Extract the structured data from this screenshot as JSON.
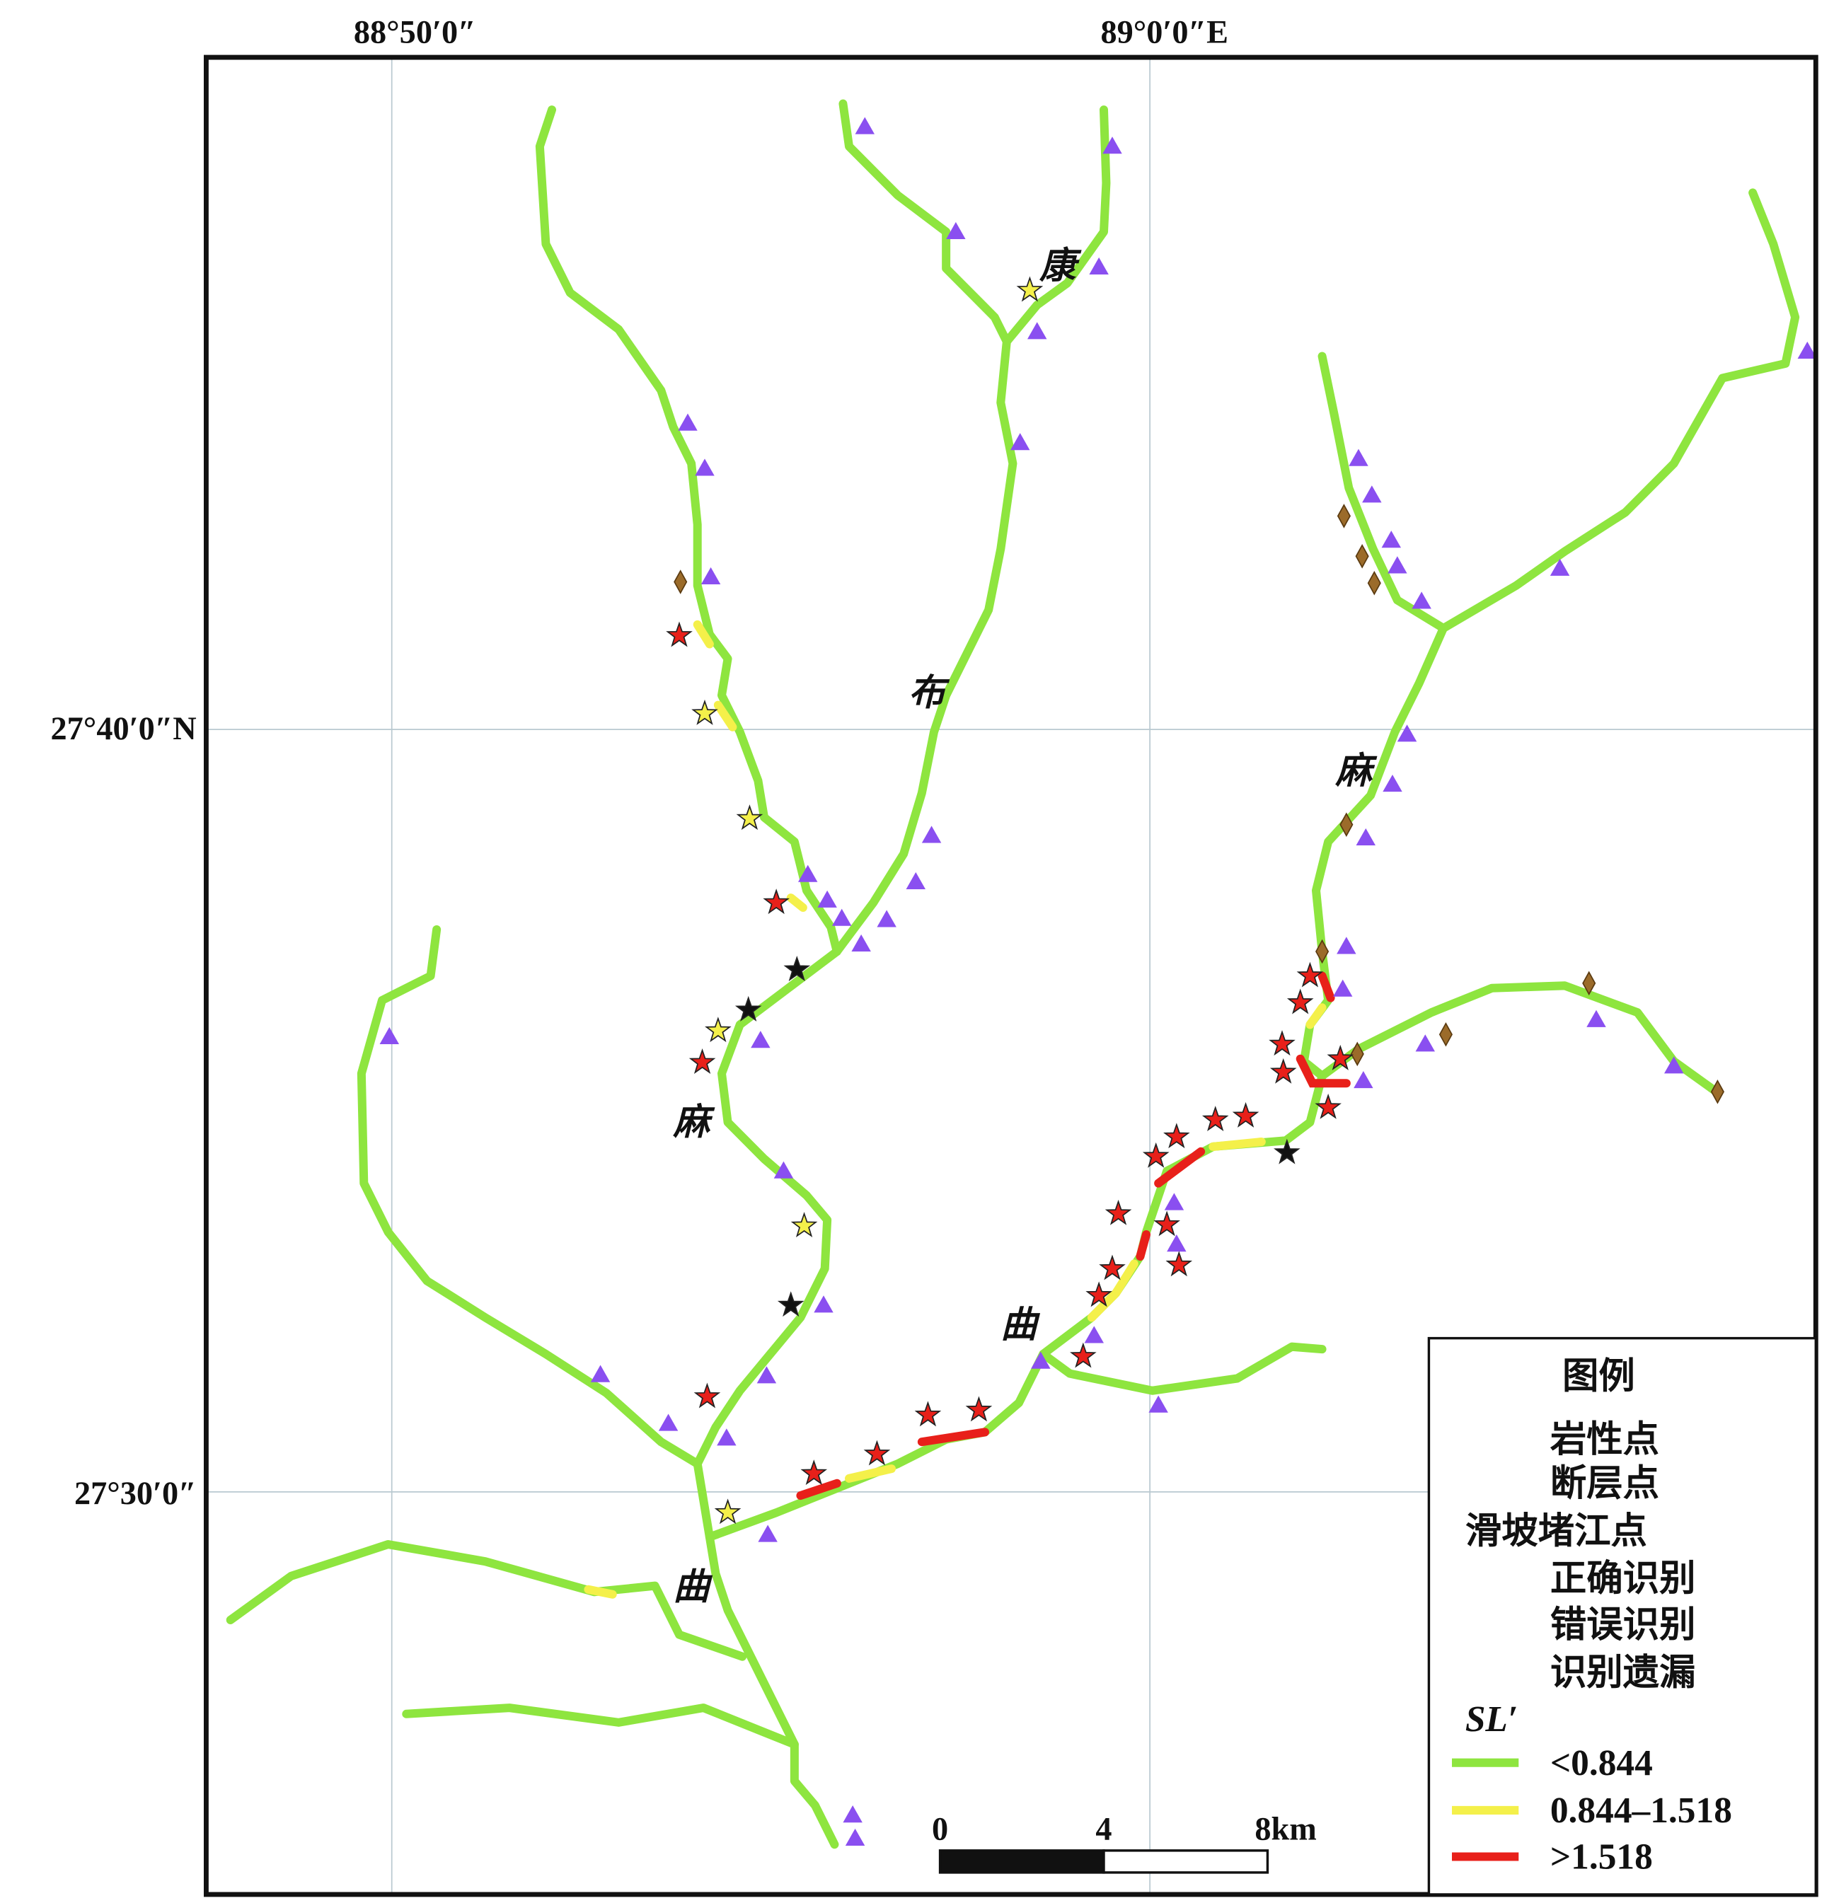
{
  "map": {
    "coordinates": {
      "top": [
        "88°50′0″",
        "89°0′0″E"
      ],
      "left": [
        "27°40′0″N",
        "27°30′0″"
      ]
    },
    "river_labels": [
      "康",
      "布",
      "麻",
      "麻",
      "曲",
      "曲"
    ],
    "legend": {
      "title": "图例",
      "points": [
        "岩性点",
        "断层点"
      ],
      "blockage_title": "滑坡堵江点",
      "blockage": [
        "正确识别",
        "错误识别",
        "识别遗漏"
      ],
      "sl_title": "SL′",
      "sl_classes": [
        "<0.844",
        "0.844–1.518",
        ">1.518"
      ]
    },
    "scale_bar": [
      "0",
      "4",
      "8km"
    ]
  }
}
